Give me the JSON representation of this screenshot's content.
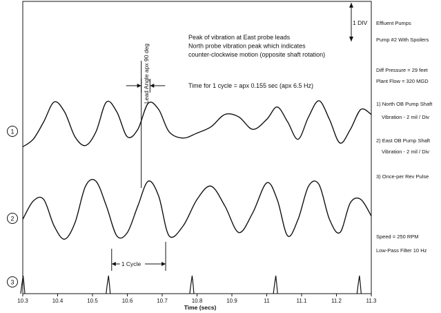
{
  "chart_data": {
    "type": "line",
    "xlabel": "Time (secs)",
    "xlim": [
      10.3,
      11.3
    ],
    "x_ticks": [
      "10.3",
      "10.4",
      "10.5",
      "10.6",
      "10.7",
      "10.8",
      "10.9",
      "11",
      "11.1",
      "11.2",
      "11.3"
    ],
    "y_units": "mil / Div",
    "series": [
      {
        "marker": "1",
        "name": "North OB Pump Shaft",
        "x": [
          10.3,
          10.33,
          10.36,
          10.39,
          10.42,
          10.45,
          10.48,
          10.51,
          10.54,
          10.57,
          10.6,
          10.63,
          10.66,
          10.69,
          10.72,
          10.76,
          10.8,
          10.84,
          10.88,
          10.92,
          10.96,
          11.0,
          11.03,
          11.06,
          11.09,
          11.12,
          11.15,
          11.18,
          11.21,
          11.24,
          11.27,
          11.3
        ],
        "y": [
          -0.9,
          -0.6,
          0.1,
          0.9,
          0.5,
          -0.5,
          -0.85,
          -0.3,
          0.9,
          0.5,
          -0.5,
          -0.2,
          0.85,
          0.6,
          -0.3,
          -0.55,
          -0.35,
          -0.1,
          0.4,
          0.3,
          -0.2,
          0.2,
          0.7,
          0.1,
          -0.6,
          0.3,
          0.95,
          0.2,
          -0.75,
          -0.2,
          0.6,
          0.4
        ]
      },
      {
        "marker": "2",
        "name": "East OB Pump Shaft",
        "x": [
          10.3,
          10.33,
          10.36,
          10.39,
          10.42,
          10.45,
          10.48,
          10.51,
          10.54,
          10.57,
          10.6,
          10.63,
          10.66,
          10.69,
          10.72,
          10.76,
          10.8,
          10.84,
          10.88,
          10.92,
          10.96,
          11.0,
          11.03,
          11.06,
          11.09,
          11.12,
          11.15,
          11.18,
          11.21,
          11.24,
          11.27,
          11.3
        ],
        "y": [
          -0.3,
          0.25,
          0.3,
          -0.5,
          -0.9,
          -0.4,
          0.7,
          0.85,
          0.1,
          -0.8,
          -0.7,
          0.1,
          0.85,
          0.4,
          -0.8,
          -0.5,
          0.3,
          0.7,
          0.1,
          -0.7,
          -0.1,
          0.8,
          0.3,
          -0.8,
          -0.3,
          0.7,
          0.75,
          -0.3,
          -0.7,
          0.2,
          0.3,
          -0.2
        ]
      },
      {
        "marker": "3",
        "name": "Once-per Rev Pulse",
        "pulse_times": [
          10.3,
          10.545,
          10.785,
          11.025,
          11.265
        ]
      }
    ],
    "annotations": {
      "scale_marker": "1 DIV",
      "peak_note": [
        "Peak of vibration at East probe leads",
        "North probe vibration peak which indicates",
        "counter-clockwise motion (opposite shaft rotation)"
      ],
      "cycle_note": "Time for 1 cycle = apx 0.155 sec (apx 6.5 Hz)",
      "lead_angle_label": "Lead Angle apx 90 deg",
      "lead_angle_x": [
        10.64,
        10.665
      ],
      "cycle_label": "1 Cycle",
      "cycle_x": [
        10.555,
        10.71
      ],
      "probe_line_x": 10.64
    },
    "side_notes": {
      "title": "Effluent Pumps",
      "subtitle": "Pump #2 With Spoilers",
      "diff_pressure": "Diff Pressure = 29 feet",
      "plant_flow": "Plant Flow = 320 MGD",
      "ch1": "1) North OB Pump Shaft",
      "ch1_scale": "Vibration - 2 mil / Div",
      "ch2": "2) East OB Pump Shaft",
      "ch2_scale": "Vibration - 2 mil / Div",
      "ch3": "3) Once-per Rev Pulse",
      "speed": "Speed = 250 RPM",
      "filter": "Low-Pass Filter 10 Hz"
    },
    "grid": false,
    "colors": {
      "line": "#111111",
      "background": "#ffffff"
    }
  }
}
